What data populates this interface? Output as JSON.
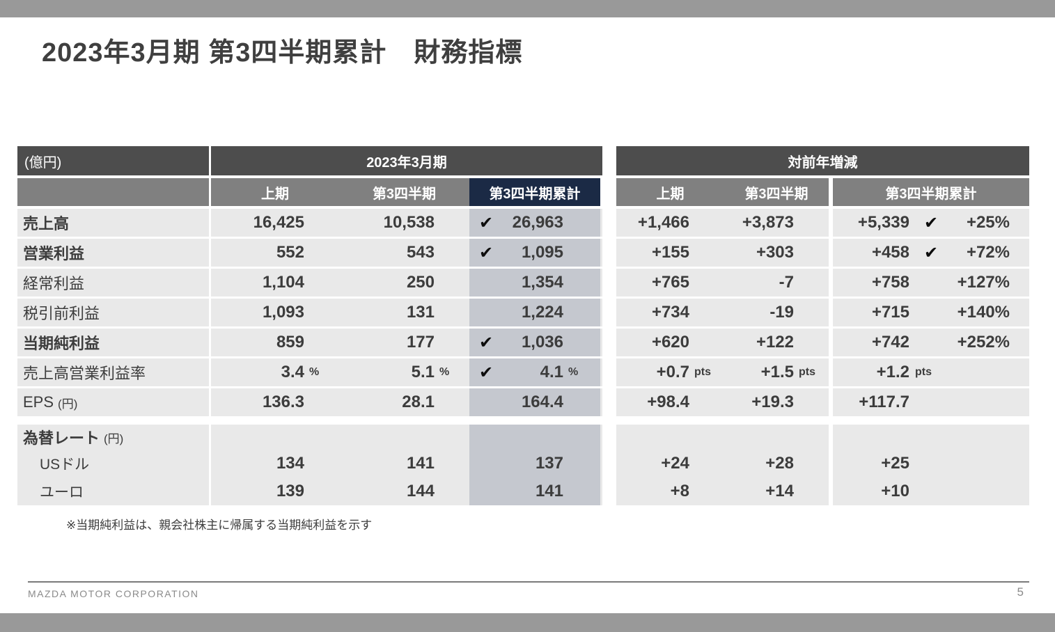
{
  "page": {
    "title": "2023年3月期 第3四半期累計　財務指標",
    "footnote": "※当期純利益は、親会社株主に帰属する当期純利益を示す",
    "footer": {
      "company": "MAZDA MOTOR CORPORATION",
      "page_number": "5"
    }
  },
  "icons": {
    "check_glyph": "✔"
  },
  "colors": {
    "bar_gray": "#999999",
    "header_dark": "#4d4d4d",
    "header_mid": "#808080",
    "accent_navy": "#1b2a45",
    "row_gray": "#e9e9e9",
    "highlight_col": "#c5c8cf",
    "title_text": "#3f3f3f"
  },
  "left_table": {
    "unit_label": "(億円)",
    "group_header": "2023年3月期",
    "columns": [
      "上期",
      "第3四半期",
      "第3四半期累計"
    ],
    "rows": [
      {
        "label": "売上高",
        "bold": true,
        "h1": "16,425",
        "q3": "10,538",
        "cum": "26,963",
        "check": true,
        "unit": ""
      },
      {
        "label": "営業利益",
        "bold": true,
        "h1": "552",
        "q3": "543",
        "cum": "1,095",
        "check": true,
        "unit": ""
      },
      {
        "label": "経常利益",
        "bold": false,
        "h1": "1,104",
        "q3": "250",
        "cum": "1,354",
        "check": false,
        "unit": ""
      },
      {
        "label": "税引前利益",
        "bold": false,
        "h1": "1,093",
        "q3": "131",
        "cum": "1,224",
        "check": false,
        "unit": ""
      },
      {
        "label": "当期純利益",
        "bold": true,
        "h1": "859",
        "q3": "177",
        "cum": "1,036",
        "check": true,
        "unit": ""
      },
      {
        "label": "売上高営業利益率",
        "bold": false,
        "h1": "3.4",
        "q3": "5.1",
        "cum": "4.1",
        "check": true,
        "unit": "%"
      },
      {
        "label": "EPS",
        "label_suffix": "(円)",
        "bold": false,
        "h1": "136.3",
        "q3": "28.1",
        "cum": "164.4",
        "check": false,
        "unit": ""
      }
    ],
    "fx": {
      "label": "為替レート",
      "label_suffix": "(円)",
      "rows": [
        {
          "label": "USドル",
          "h1": "134",
          "q3": "141",
          "cum": "137"
        },
        {
          "label": "ユーロ",
          "h1": "139",
          "q3": "144",
          "cum": "141"
        }
      ]
    }
  },
  "right_table": {
    "group_header": "対前年増減",
    "columns": [
      "上期",
      "第3四半期",
      "第3四半期累計"
    ],
    "rows": [
      {
        "h1": "+1,466",
        "q3": "+3,873",
        "cum": "+5,339",
        "check": true,
        "pct": "+25%",
        "unit": ""
      },
      {
        "h1": "+155",
        "q3": "+303",
        "cum": "+458",
        "check": true,
        "pct": "+72%",
        "unit": ""
      },
      {
        "h1": "+765",
        "q3": "-7",
        "cum": "+758",
        "check": false,
        "pct": "+127%",
        "unit": ""
      },
      {
        "h1": "+734",
        "q3": "-19",
        "cum": "+715",
        "check": false,
        "pct": "+140%",
        "unit": ""
      },
      {
        "h1": "+620",
        "q3": "+122",
        "cum": "+742",
        "check": false,
        "pct": "+252%",
        "unit": ""
      },
      {
        "h1": "+0.7",
        "q3": "+1.5",
        "cum": "+1.2",
        "check": false,
        "pct": "",
        "unit": "pts"
      },
      {
        "h1": "+98.4",
        "q3": "+19.3",
        "cum": "+117.7",
        "check": false,
        "pct": "",
        "unit": ""
      }
    ],
    "fx_rows": [
      {
        "h1": "+24",
        "q3": "+28",
        "cum": "+25"
      },
      {
        "h1": "+8",
        "q3": "+14",
        "cum": "+10"
      }
    ]
  }
}
